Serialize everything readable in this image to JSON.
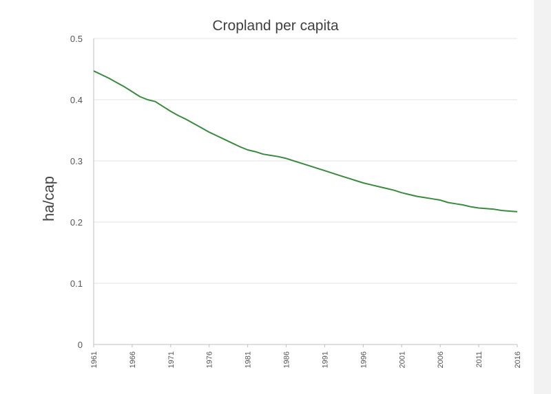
{
  "chart_data": {
    "type": "line",
    "title": "Cropland per capita",
    "xlabel": "",
    "ylabel": "ha/cap",
    "ylim": [
      0,
      0.5
    ],
    "yticks": [
      "0",
      "0.1",
      "0.2",
      "0.3",
      "0.4",
      "0.5"
    ],
    "xlim": [
      1961,
      2016
    ],
    "xticks": [
      "1961",
      "1966",
      "1971",
      "1976",
      "1981",
      "1986",
      "1991",
      "1996",
      "2001",
      "2006",
      "2011",
      "2016"
    ],
    "grid": true,
    "color": "#3a8a3e",
    "series": [
      {
        "x": [
          1961,
          1962,
          1963,
          1964,
          1965,
          1966,
          1967,
          1968,
          1969,
          1970,
          1971,
          1972,
          1973,
          1974,
          1975,
          1976,
          1977,
          1978,
          1979,
          1980,
          1981,
          1982,
          1983,
          1984,
          1985,
          1986,
          1987,
          1988,
          1989,
          1990,
          1991,
          1992,
          1993,
          1994,
          1995,
          1996,
          1997,
          1998,
          1999,
          2000,
          2001,
          2002,
          2003,
          2004,
          2005,
          2006,
          2007,
          2008,
          2009,
          2010,
          2011,
          2012,
          2013,
          2014,
          2015,
          2016
        ],
        "y": [
          0.447,
          0.441,
          0.435,
          0.428,
          0.421,
          0.413,
          0.405,
          0.4,
          0.397,
          0.389,
          0.381,
          0.374,
          0.368,
          0.361,
          0.354,
          0.347,
          0.341,
          0.335,
          0.329,
          0.323,
          0.318,
          0.315,
          0.311,
          0.309,
          0.307,
          0.304,
          0.3,
          0.296,
          0.292,
          0.288,
          0.284,
          0.28,
          0.276,
          0.272,
          0.268,
          0.264,
          0.261,
          0.258,
          0.255,
          0.252,
          0.248,
          0.245,
          0.242,
          0.24,
          0.238,
          0.236,
          0.232,
          0.23,
          0.228,
          0.225,
          0.223,
          0.222,
          0.221,
          0.219,
          0.218,
          0.217
        ]
      }
    ]
  }
}
